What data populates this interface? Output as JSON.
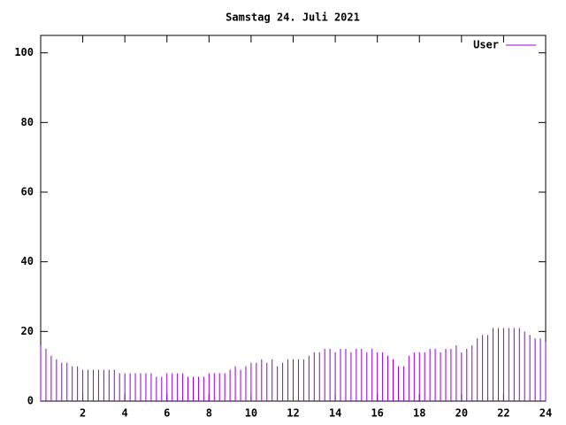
{
  "chart_data": {
    "type": "impulse",
    "title": "Samstag 24. Juli 2021",
    "x": [
      0,
      0.25,
      0.5,
      0.75,
      1,
      1.25,
      1.5,
      1.75,
      2,
      2.25,
      2.5,
      2.75,
      3,
      3.25,
      3.5,
      3.75,
      4,
      4.25,
      4.5,
      4.75,
      5,
      5.25,
      5.5,
      5.75,
      6,
      6.25,
      6.5,
      6.75,
      7,
      7.25,
      7.5,
      7.75,
      8,
      8.25,
      8.5,
      8.75,
      9,
      9.25,
      9.5,
      9.75,
      10,
      10.25,
      10.5,
      10.75,
      11,
      11.25,
      11.5,
      11.75,
      12,
      12.25,
      12.5,
      12.75,
      13,
      13.25,
      13.5,
      13.75,
      14,
      14.25,
      14.5,
      14.75,
      15,
      15.25,
      15.5,
      15.75,
      16,
      16.25,
      16.5,
      16.75,
      17,
      17.25,
      17.5,
      17.75,
      18,
      18.25,
      18.5,
      18.75,
      19,
      19.25,
      19.5,
      19.75,
      20,
      20.25,
      20.5,
      20.75,
      21,
      21.25,
      21.5,
      21.75,
      22,
      22.25,
      22.5,
      22.75,
      23,
      23.25,
      23.5,
      23.75,
      24
    ],
    "series": [
      {
        "name": "User",
        "color": "#9400d3",
        "values": [
          16,
          15,
          13,
          12,
          11,
          11,
          10,
          10,
          9,
          9,
          9,
          9,
          9,
          9,
          9,
          8,
          8,
          8,
          8,
          8,
          8,
          8,
          7,
          7,
          8,
          8,
          8,
          8,
          7,
          7,
          7,
          7,
          8,
          8,
          8,
          8,
          9,
          10,
          9,
          10,
          11,
          11,
          12,
          11,
          12,
          10,
          11,
          12,
          12,
          12,
          12,
          13,
          14,
          14,
          15,
          15,
          14,
          15,
          15,
          14,
          15,
          15,
          14,
          15,
          14,
          14,
          13,
          12,
          10,
          10,
          13,
          14,
          14,
          14,
          15,
          15,
          14,
          15,
          15,
          16,
          14,
          15,
          16,
          18,
          19,
          19,
          21,
          21,
          21,
          21,
          21,
          21,
          20,
          19,
          18,
          18,
          17
        ]
      }
    ],
    "xlim": [
      0,
      24
    ],
    "xticks": [
      2,
      4,
      6,
      8,
      10,
      12,
      14,
      16,
      18,
      20,
      22,
      24
    ],
    "ylim": [
      0,
      105
    ],
    "yticks": [
      0,
      20,
      40,
      60,
      80,
      100
    ]
  }
}
